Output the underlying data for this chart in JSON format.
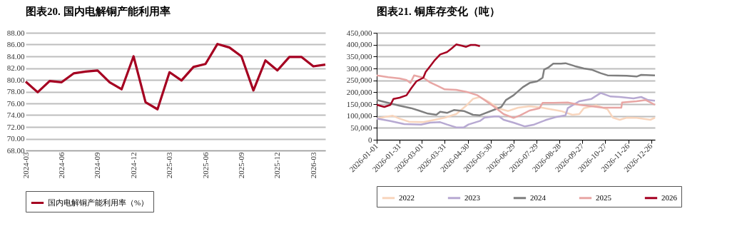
{
  "chart_data": [
    {
      "type": "line",
      "title": "图表20.  国内电解铜产能利用率",
      "categories": [
        "2024-03",
        null,
        null,
        "2024-06",
        null,
        null,
        "2024-09",
        null,
        null,
        "2024-12",
        null,
        null,
        "2025-03",
        null,
        null,
        "2025-06",
        null,
        null,
        "2025-09",
        null,
        null,
        "2025-12",
        null,
        null,
        "2026-03",
        null
      ],
      "series": [
        {
          "name": "国内电解铜产能利用率（%）",
          "color": "#a50021",
          "values": [
            79.7,
            77.9,
            79.8,
            79.6,
            81.1,
            81.4,
            81.6,
            79.6,
            78.4,
            84.0,
            76.2,
            75.0,
            81.3,
            79.9,
            82.2,
            82.7,
            86.1,
            85.5,
            84.0,
            78.2,
            83.3,
            81.6,
            83.9,
            83.9,
            82.3,
            82.6
          ]
        }
      ],
      "ylim": [
        68,
        88
      ],
      "yticks": [
        {
          "value": 68,
          "label": "68.00"
        },
        {
          "value": 70,
          "label": "70.00"
        },
        {
          "value": 72,
          "label": "72.00"
        },
        {
          "value": 74,
          "label": "74.00"
        },
        {
          "value": 76,
          "label": "76.00"
        },
        {
          "value": 78,
          "label": "78.00"
        },
        {
          "value": 80,
          "label": "80.00"
        },
        {
          "value": 82,
          "label": "82.00"
        },
        {
          "value": 84,
          "label": "84.00"
        },
        {
          "value": 86,
          "label": "86.00"
        },
        {
          "value": 88,
          "label": "88.00"
        }
      ],
      "grid": "y",
      "legend": "bottom",
      "marker": "none",
      "line_style": "solid"
    },
    {
      "type": "line",
      "title": "图表21.  铜库存变化（吨）",
      "xlim": [
        "2026-01-01",
        "2026-12-31"
      ],
      "xticks": [
        "2026-01-01",
        "2026-01-31",
        "2026-03-01",
        "2026-03-31",
        "2026-04-30",
        "2026-05-30",
        "2026-06-29",
        "2026-07-29",
        "2026-08-28",
        "2026-09-27",
        "2026-10-27",
        "2026-11-26",
        "2026-12-26"
      ],
      "series": [
        {
          "name": "2022",
          "color": "#f8d5bd",
          "x": [
            "2026-01-01",
            "2026-01-16",
            "2026-01-22",
            "2026-01-31",
            "2026-02-12",
            "2026-03-03",
            "2026-03-18",
            "2026-03-31",
            "2026-04-15",
            "2026-04-28",
            "2026-05-07",
            "2026-05-16",
            "2026-05-29",
            "2026-06-10",
            "2026-06-22",
            "2026-07-05",
            "2026-07-20",
            "2026-08-05",
            "2026-08-30",
            "2026-09-14",
            "2026-09-23",
            "2026-09-29",
            "2026-10-15",
            "2026-10-30",
            "2026-11-06",
            "2026-11-15",
            "2026-11-24",
            "2026-12-07",
            "2026-12-25",
            "2026-12-31"
          ],
          "values": [
            89000,
            98000,
            101000,
            89000,
            76000,
            74000,
            84000,
            93000,
            108000,
            143000,
            172000,
            180000,
            157000,
            131000,
            121000,
            135000,
            141000,
            135000,
            121000,
            105000,
            108000,
            133000,
            145000,
            128000,
            93000,
            84000,
            93000,
            92000,
            84000,
            93000
          ]
        },
        {
          "name": "2023",
          "color": "#b7a9d2",
          "x": [
            "2026-01-01",
            "2026-01-19",
            "2026-02-06",
            "2026-02-28",
            "2026-03-12",
            "2026-03-25",
            "2026-04-03",
            "2026-04-15",
            "2026-04-25",
            "2026-05-01",
            "2026-05-16",
            "2026-05-22",
            "2026-06-04",
            "2026-06-10",
            "2026-06-16",
            "2026-06-29",
            "2026-07-14",
            "2026-07-26",
            "2026-08-11",
            "2026-08-23",
            "2026-09-05",
            "2026-09-08",
            "2026-09-23",
            "2026-10-09",
            "2026-10-21",
            "2026-11-03",
            "2026-11-15",
            "2026-12-03",
            "2026-12-13",
            "2026-12-22",
            "2026-12-31"
          ],
          "values": [
            89000,
            79000,
            66000,
            64000,
            72000,
            74000,
            64000,
            52000,
            52000,
            64000,
            79000,
            93000,
            98000,
            98000,
            84000,
            72000,
            56000,
            64000,
            84000,
            95000,
            103000,
            133000,
            162000,
            172000,
            197000,
            182000,
            180000,
            174000,
            180000,
            167000,
            164000
          ]
        },
        {
          "name": "2024",
          "color": "#7f7f7f",
          "x": [
            "2026-01-01",
            "2026-01-16",
            "2026-01-31",
            "2026-02-15",
            "2026-02-25",
            "2026-03-09",
            "2026-03-20",
            "2026-03-25",
            "2026-04-03",
            "2026-04-12",
            "2026-04-25",
            "2026-05-07",
            "2026-05-16",
            "2026-06-01",
            "2026-06-13",
            "2026-06-19",
            "2026-06-29",
            "2026-07-11",
            "2026-07-20",
            "2026-07-30",
            "2026-08-06",
            "2026-08-08",
            "2026-08-14",
            "2026-08-20",
            "2026-08-30",
            "2026-09-05",
            "2026-09-17",
            "2026-09-29",
            "2026-10-09",
            "2026-10-21",
            "2026-10-30",
            "2026-11-24",
            "2026-12-07",
            "2026-12-13",
            "2026-12-31"
          ],
          "values": [
            167000,
            155000,
            143000,
            133000,
            123000,
            110000,
            105000,
            118000,
            113000,
            125000,
            121000,
            105000,
            103000,
            123000,
            138000,
            167000,
            187000,
            221000,
            239000,
            246000,
            261000,
            295000,
            305000,
            320000,
            320000,
            322000,
            310000,
            300000,
            295000,
            280000,
            271000,
            269000,
            266000,
            273000,
            271000
          ]
        },
        {
          "name": "2025",
          "color": "#e8a6a4",
          "x": [
            "2026-01-01",
            "2026-01-16",
            "2026-01-31",
            "2026-02-09",
            "2026-02-14",
            "2026-02-19",
            "2026-03-03",
            "2026-03-12",
            "2026-03-22",
            "2026-03-31",
            "2026-04-15",
            "2026-04-28",
            "2026-05-13",
            "2026-05-22",
            "2026-06-04",
            "2026-06-16",
            "2026-06-29",
            "2026-07-08",
            "2026-07-20",
            "2026-08-02",
            "2026-08-06",
            "2026-08-20",
            "2026-09-08",
            "2026-09-23",
            "2026-10-09",
            "2026-10-24",
            "2026-11-17",
            "2026-11-18",
            "2026-12-07",
            "2026-12-19",
            "2026-12-31"
          ],
          "values": [
            271000,
            263000,
            258000,
            251000,
            239000,
            271000,
            261000,
            241000,
            226000,
            212000,
            210000,
            202000,
            187000,
            167000,
            138000,
            108000,
            92000,
            103000,
            123000,
            133000,
            155000,
            155000,
            157000,
            147000,
            141000,
            135000,
            135000,
            157000,
            162000,
            167000,
            147000
          ]
        },
        {
          "name": "2026",
          "color": "#a50021",
          "x": [
            "2026-01-01",
            "2026-01-11",
            "2026-01-19",
            "2026-01-23",
            "2026-01-31",
            "2026-02-09",
            "2026-02-15",
            "2026-02-22",
            "2026-03-03",
            "2026-03-06",
            "2026-03-12",
            "2026-03-18",
            "2026-03-25",
            "2026-04-03",
            "2026-04-09",
            "2026-04-15",
            "2026-04-22",
            "2026-04-28",
            "2026-05-04",
            "2026-05-10",
            "2026-05-16"
          ],
          "values": [
            147000,
            138000,
            147000,
            172000,
            177000,
            187000,
            216000,
            246000,
            261000,
            285000,
            310000,
            335000,
            359000,
            369000,
            384000,
            401000,
            396000,
            391000,
            399000,
            399000,
            394000
          ]
        }
      ],
      "ylim": [
        0,
        450000
      ],
      "yticks": [
        0,
        {
          "value": 50000,
          "label": "50,000"
        },
        {
          "value": 100000,
          "label": "100,000"
        },
        {
          "value": 150000,
          "label": "150,000"
        },
        {
          "value": 200000,
          "label": "200,000"
        },
        {
          "value": 250000,
          "label": "250,000"
        },
        {
          "value": 300000,
          "label": "300,000"
        },
        {
          "value": 350000,
          "label": "350,000"
        },
        {
          "value": 400000,
          "label": "400,000"
        },
        {
          "value": 450000,
          "label": "450,000"
        }
      ],
      "grid": "y",
      "legend": "bottom",
      "marker": "none",
      "line_style": "solid"
    }
  ]
}
